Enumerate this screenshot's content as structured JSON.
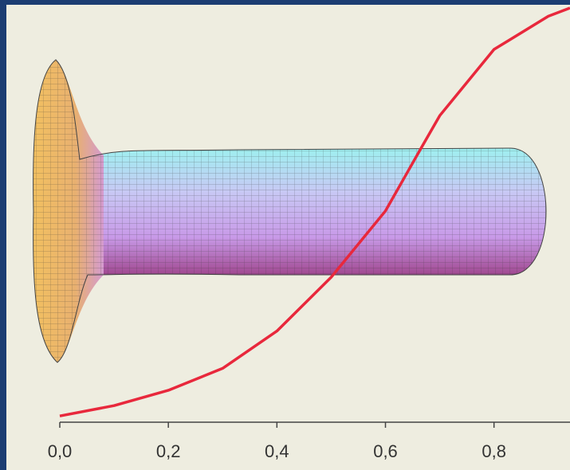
{
  "chart_data": {
    "type": "line",
    "x": [
      0,
      0.1,
      0.2,
      0.3,
      0.4,
      0.5,
      0.6,
      0.665,
      0.7,
      0.8,
      0.9,
      0.94
    ],
    "series": [
      {
        "color": "#e8283c",
        "values": [
          0.015,
          0.04,
          0.077,
          0.13,
          0.22,
          0.35,
          0.51,
          0.66,
          0.74,
          0.9,
          0.98,
          1.0
        ]
      }
    ],
    "xlim": [
      0,
      0.94
    ],
    "ylim": [
      0,
      1
    ],
    "xticks": [
      {
        "value": 0,
        "label": "0,0"
      },
      {
        "value": 0.2,
        "label": "0,2"
      },
      {
        "value": 0.4,
        "label": "0,4"
      },
      {
        "value": 0.6,
        "label": "0,6"
      },
      {
        "value": 0.8,
        "label": "0,8"
      }
    ]
  }
}
